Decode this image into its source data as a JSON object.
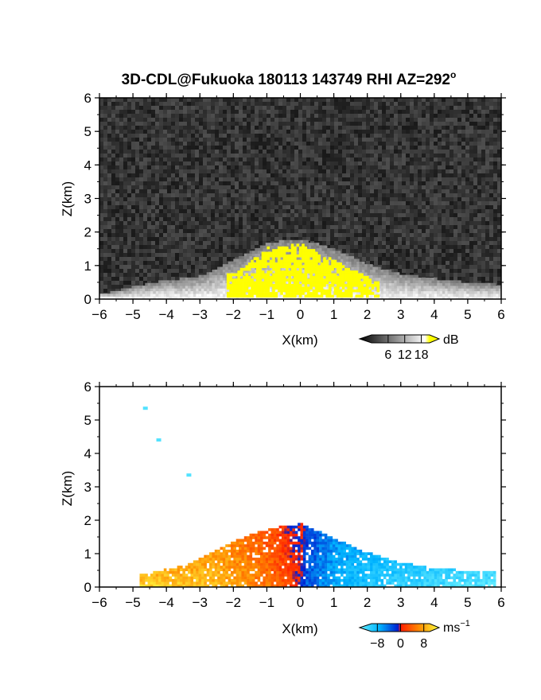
{
  "title": "3D-CDL@Fukuoka 180113 143749 RHI AZ=292",
  "title_degree": "o",
  "chart_data": [
    {
      "type": "heatmap",
      "name": "reflectivity",
      "xlabel": "X(km)",
      "ylabel": "Z(km)",
      "xlim": [
        -6,
        6
      ],
      "ylim": [
        0,
        6
      ],
      "xticks": [
        -6,
        -5,
        -4,
        -3,
        -2,
        -1,
        0,
        1,
        2,
        3,
        4,
        5,
        6
      ],
      "yticks": [
        0,
        1,
        2,
        3,
        4,
        5,
        6
      ],
      "colorbar": {
        "unit": "dB",
        "ticks": [
          6,
          12,
          18
        ],
        "range": [
          0,
          21
        ],
        "colors": [
          "#000000",
          "#ffffff",
          "#ffff00"
        ]
      },
      "background": "noise",
      "echo_top_profile": [
        {
          "x": -5.8,
          "z": 0.15
        },
        {
          "x": -4.5,
          "z": 0.45
        },
        {
          "x": -3.0,
          "z": 0.65
        },
        {
          "x": -2.0,
          "z": 1.15
        },
        {
          "x": -1.0,
          "z": 1.65
        },
        {
          "x": 0.0,
          "z": 1.75
        },
        {
          "x": 1.0,
          "z": 1.45
        },
        {
          "x": 2.0,
          "z": 1.0
        },
        {
          "x": 3.0,
          "z": 0.7
        },
        {
          "x": 4.5,
          "z": 0.5
        },
        {
          "x": 5.8,
          "z": 0.4
        }
      ],
      "saturated_core": [
        {
          "x": -2.0,
          "z": 0.7
        },
        {
          "x": -1.0,
          "z": 1.5
        },
        {
          "x": 0.0,
          "z": 1.6
        },
        {
          "x": 0.8,
          "z": 1.2
        },
        {
          "x": 2.2,
          "z": 0.5
        }
      ]
    },
    {
      "type": "heatmap",
      "name": "radial-velocity",
      "xlabel": "X(km)",
      "ylabel": "Z(km)",
      "xlim": [
        -6,
        6
      ],
      "ylim": [
        0,
        6
      ],
      "xticks": [
        -6,
        -5,
        -4,
        -3,
        -2,
        -1,
        0,
        1,
        2,
        3,
        4,
        5,
        6
      ],
      "yticks": [
        0,
        1,
        2,
        3,
        4,
        5,
        6
      ],
      "colorbar": {
        "unit": "ms",
        "unit_exponent": "−1",
        "ticks": [
          -8,
          0,
          8
        ],
        "tick_labels": [
          "−8",
          "0",
          "8"
        ],
        "range": [
          -10,
          10
        ],
        "colors": [
          "#66eeff",
          "#00b4ff",
          "#0020d0",
          "#ff2000",
          "#ff8c00",
          "#ffff40"
        ]
      },
      "echo_top_profile": [
        {
          "x": -4.8,
          "z": 0.35
        },
        {
          "x": -3.5,
          "z": 0.6
        },
        {
          "x": -2.5,
          "z": 1.1
        },
        {
          "x": -1.5,
          "z": 1.55
        },
        {
          "x": -0.5,
          "z": 1.8
        },
        {
          "x": 0.0,
          "z": 1.85
        },
        {
          "x": 0.8,
          "z": 1.5
        },
        {
          "x": 1.8,
          "z": 1.05
        },
        {
          "x": 2.8,
          "z": 0.75
        },
        {
          "x": 4.0,
          "z": 0.5
        },
        {
          "x": 5.8,
          "z": 0.45
        }
      ],
      "velocity_profile": [
        {
          "x": -4.5,
          "v": 8
        },
        {
          "x": -2.5,
          "v": 7
        },
        {
          "x": -1.0,
          "v": 4
        },
        {
          "x": -0.1,
          "v": 1
        },
        {
          "x": 0.1,
          "v": -2
        },
        {
          "x": 1.0,
          "v": -5
        },
        {
          "x": 2.5,
          "v": -7
        },
        {
          "x": 5.5,
          "v": -9
        }
      ],
      "isolated_points": [
        {
          "x": -4.7,
          "z": 5.4,
          "v": -9
        },
        {
          "x": -4.3,
          "z": 4.45,
          "v": -9
        },
        {
          "x": -3.4,
          "z": 3.4,
          "v": -9
        }
      ]
    }
  ]
}
